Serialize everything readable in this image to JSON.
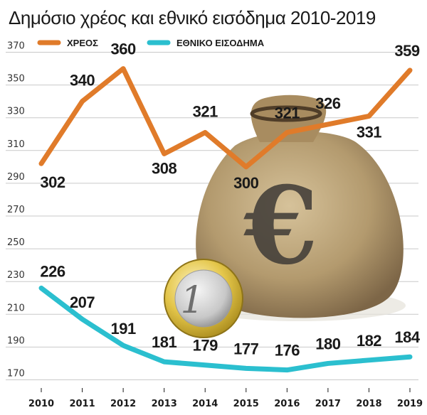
{
  "chart_data": {
    "type": "line",
    "title": "Δημόσιο χρέος και εθνικό εισόδημα 2010-2019",
    "categories": [
      "2010",
      "2011",
      "2012",
      "2013",
      "2014",
      "2015",
      "2016",
      "2017",
      "2018",
      "2019"
    ],
    "series": [
      {
        "name": "ΧΡΕΟΣ",
        "color": "#e07b2a",
        "values": [
          302,
          340,
          360,
          308,
          321,
          300,
          321,
          326,
          331,
          359
        ]
      },
      {
        "name": "ΕΘΝΙΚΟ ΕΙΣΟΔΗΜΑ",
        "color": "#2bbfcf",
        "values": [
          226,
          207,
          191,
          181,
          179,
          177,
          176,
          180,
          182,
          184
        ]
      }
    ],
    "yticks": [
      370,
      350,
      330,
      310,
      290,
      270,
      250,
      230,
      210,
      190,
      170
    ],
    "ylim": [
      165,
      375
    ],
    "grid": true,
    "legend_position": "top-left",
    "illustration": [
      "money-bag",
      "euro-coin"
    ]
  }
}
